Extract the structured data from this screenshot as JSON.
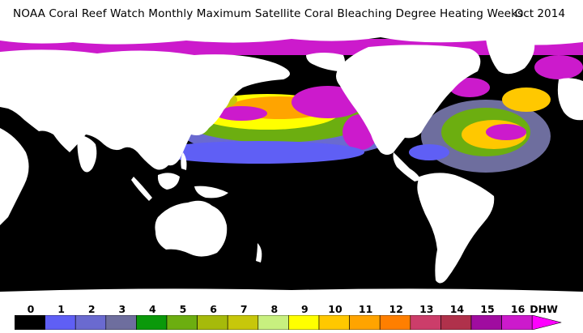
{
  "header": {
    "title": "NOAA Coral Reef Watch Monthly Maximum Satellite Coral Bleaching Degree Heating Weeks",
    "date": "Oct 2014"
  },
  "legend": {
    "unit": "DHW",
    "labels": [
      "0",
      "1",
      "2",
      "3",
      "4",
      "5",
      "6",
      "7",
      "8",
      "9",
      "10",
      "11",
      "12",
      "13",
      "14",
      "15",
      "16"
    ],
    "colors": [
      "#000000",
      "#5f5ff5",
      "#6a6ad0",
      "#6e6e9e",
      "#0a990a",
      "#6cae10",
      "#a6ba0a",
      "#c7c70a",
      "#c8f07f",
      "#ffff00",
      "#ffc800",
      "#ffa400",
      "#ff7f00",
      "#cc3d6a",
      "#b0314b",
      "#a00ca0",
      "#cc1acc",
      "#ff00ff"
    ]
  },
  "map": {
    "land_color": "#ffffff",
    "ocean_color": "#000000"
  }
}
